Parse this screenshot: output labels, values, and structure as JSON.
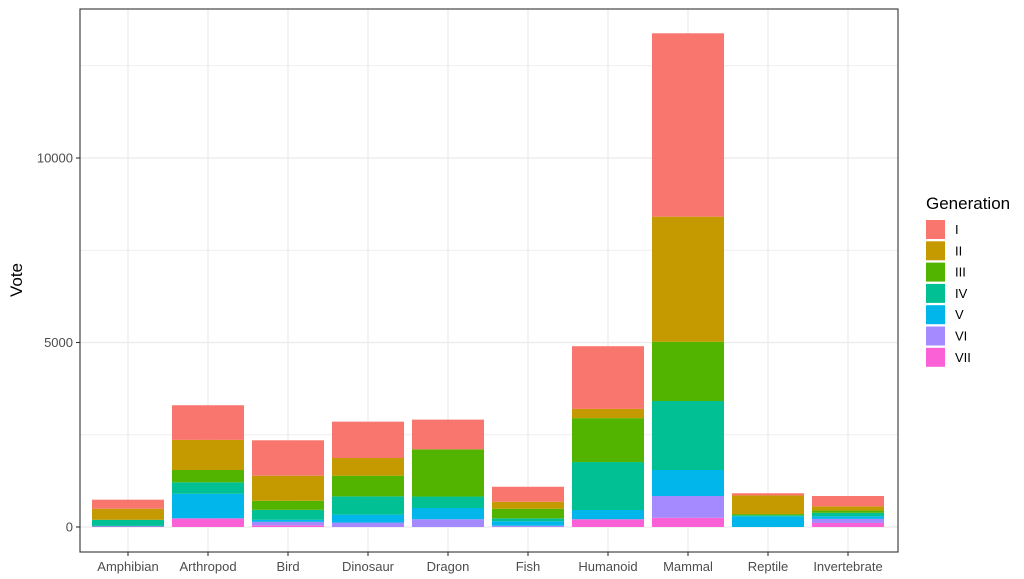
{
  "chart_data": {
    "type": "bar",
    "stacked": true,
    "title": "",
    "xlabel": "",
    "ylabel": "Vote",
    "ylim": [
      -650,
      14050
    ],
    "yticks": [
      0,
      5000,
      10000
    ],
    "ytick_labels": [
      "0",
      "5000",
      "10000"
    ],
    "grid": true,
    "legend_position": "right",
    "legend_title": "Generation",
    "categories": [
      "Amphibian",
      "Arthropod",
      "Bird",
      "Dinosaur",
      "Dragon",
      "Fish",
      "Humanoid",
      "Mammal",
      "Reptile",
      "Invertebrate"
    ],
    "series": [
      {
        "name": "I",
        "color": "#F8766D",
        "values": [
          245,
          940,
          960,
          985,
          805,
          405,
          1700,
          4970,
          60,
          280
        ]
      },
      {
        "name": "II",
        "color": "#C49A00",
        "values": [
          300,
          815,
          680,
          480,
          0,
          190,
          250,
          3390,
          505,
          115
        ]
      },
      {
        "name": "III",
        "color": "#53B400",
        "values": [
          0,
          335,
          245,
          560,
          1280,
          260,
          1190,
          1605,
          35,
          60
        ]
      },
      {
        "name": "IV",
        "color": "#00C094",
        "values": [
          165,
          310,
          270,
          495,
          310,
          80,
          1300,
          1870,
          25,
          95
        ]
      },
      {
        "name": "V",
        "color": "#00B6EB",
        "values": [
          15,
          665,
          55,
          215,
          305,
          120,
          250,
          705,
          290,
          70
        ]
      },
      {
        "name": "VI",
        "color": "#A58AFF",
        "values": [
          0,
          0,
          95,
          120,
          210,
          35,
          0,
          590,
          0,
          110
        ]
      },
      {
        "name": "VII",
        "color": "#FB61D7",
        "values": [
          15,
          235,
          45,
          0,
          0,
          0,
          210,
          250,
          0,
          110
        ]
      }
    ]
  }
}
